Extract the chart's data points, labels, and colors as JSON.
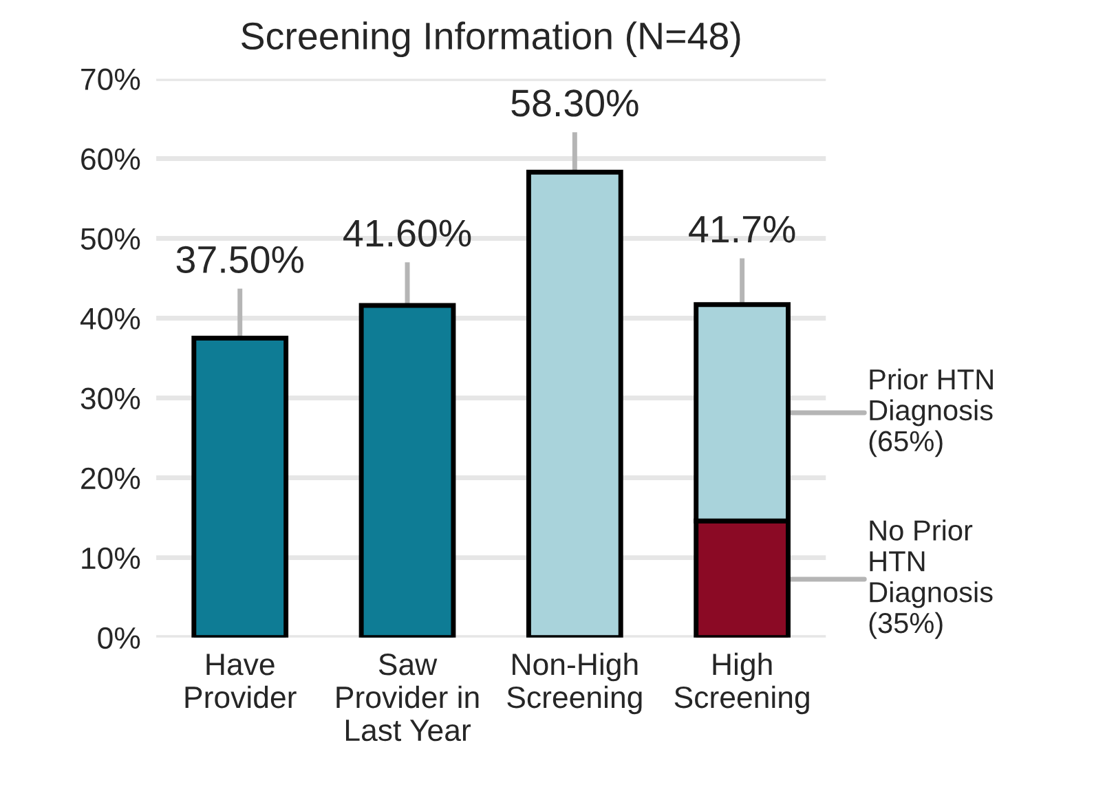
{
  "chart_data": {
    "type": "bar",
    "title": "Screening Information (N=48)",
    "categories": [
      "Have\nProvider",
      "Saw\nProvider in\nLast Year",
      "Non-High\nScreening",
      "High\nScreening"
    ],
    "stacked": true,
    "series": [
      {
        "colors": [
          "#0e7c95",
          "#0e7c95",
          "#a9d3db",
          "#a9d3db"
        ],
        "values": [
          37.5,
          41.6,
          58.3,
          null
        ],
        "errors": [
          [
            37.5,
            43.7
          ],
          [
            41.6,
            47.0
          ],
          [
            58.3,
            63.3
          ],
          null
        ]
      },
      {
        "name": "No Prior\nHTN\nDiagnosis\n(35%)",
        "color": "#8b0a25",
        "values": [
          null,
          null,
          null,
          14.6
        ]
      },
      {
        "name": "Prior HTN\nDiagnosis\n(65%)",
        "color": "#a9d3db",
        "values": [
          null,
          null,
          null,
          27.1
        ],
        "errors": [
          null,
          null,
          null,
          [
            41.7,
            47.5
          ]
        ]
      }
    ],
    "totals": [
      "37.50%",
      "41.60%",
      "58.30%",
      "41.7%"
    ],
    "ylim": [
      0,
      70
    ],
    "yticks": [
      {
        "value": 0,
        "label": "0%"
      },
      {
        "value": 10,
        "label": "10%"
      },
      {
        "value": 20,
        "label": "20%"
      },
      {
        "value": 30,
        "label": "30%"
      },
      {
        "value": 40,
        "label": "40%"
      },
      {
        "value": 50,
        "label": "50%"
      },
      {
        "value": 60,
        "label": "60%"
      },
      {
        "value": 70,
        "label": "70%"
      }
    ],
    "grid": "y"
  }
}
